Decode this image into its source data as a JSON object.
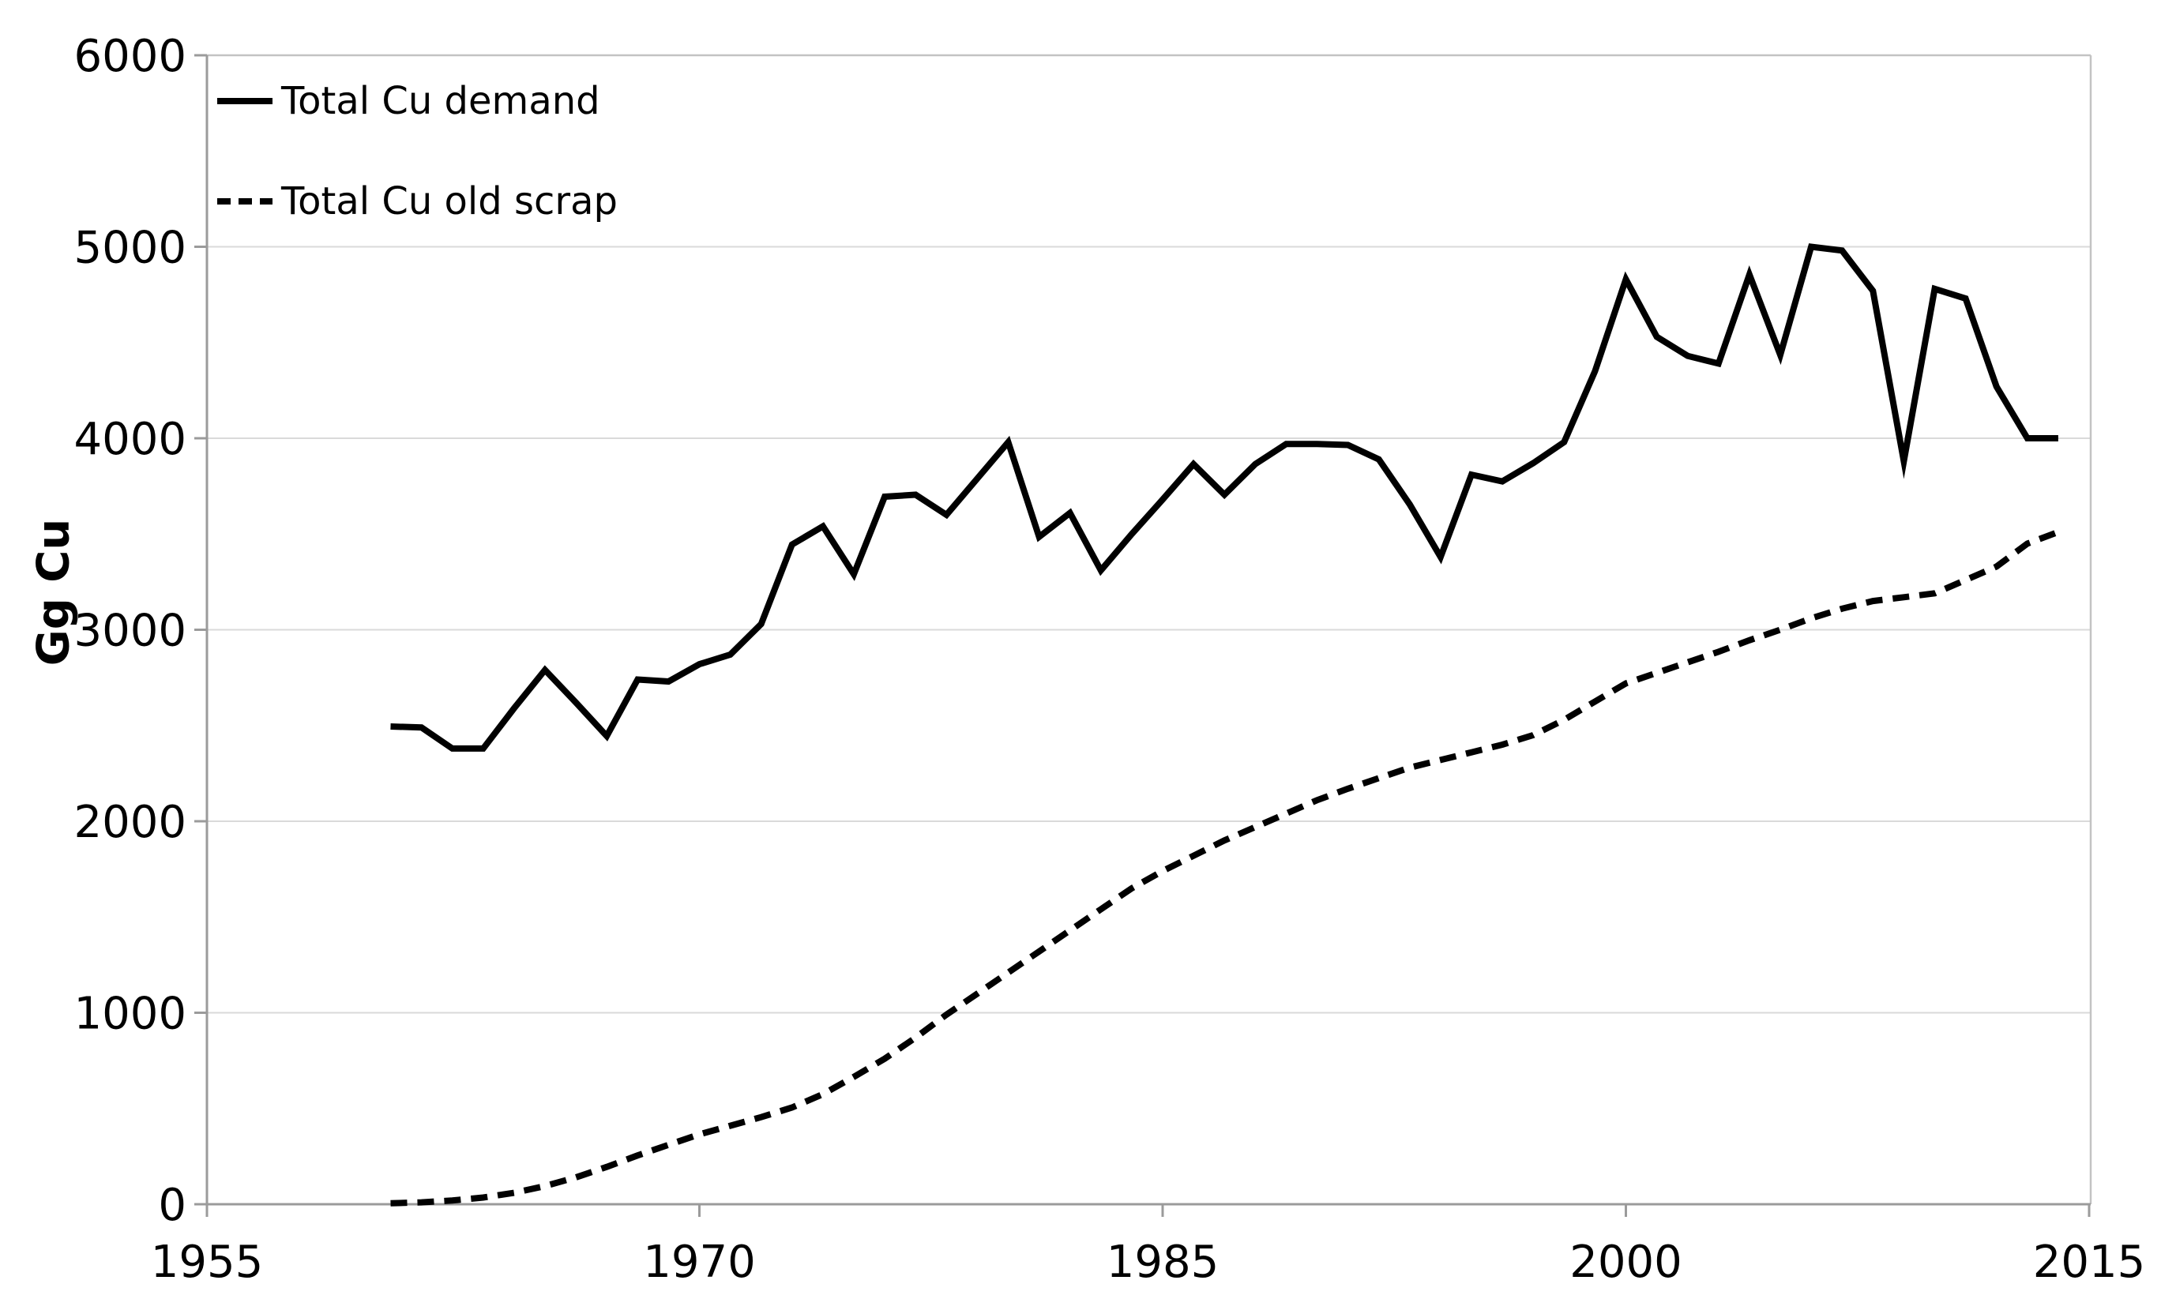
{
  "chart_data": {
    "type": "line",
    "title": "",
    "xlabel": "",
    "ylabel": "Gg Cu",
    "xlim": [
      1955,
      2015
    ],
    "ylim": [
      0,
      6000
    ],
    "x_ticks": [
      1955,
      1970,
      1985,
      2000,
      2015
    ],
    "y_ticks": [
      0,
      1000,
      2000,
      3000,
      4000,
      5000,
      6000
    ],
    "grid": "horizontal",
    "legend_position": "top-left-inside",
    "x": [
      1960,
      1961,
      1962,
      1963,
      1964,
      1965,
      1966,
      1967,
      1968,
      1969,
      1970,
      1971,
      1972,
      1973,
      1974,
      1975,
      1976,
      1977,
      1978,
      1979,
      1980,
      1981,
      1982,
      1983,
      1984,
      1985,
      1986,
      1987,
      1988,
      1989,
      1990,
      1991,
      1992,
      1993,
      1994,
      1995,
      1996,
      1997,
      1998,
      1999,
      2000,
      2001,
      2002,
      2003,
      2004,
      2005,
      2006,
      2007,
      2008,
      2009,
      2010,
      2011,
      2012,
      2013,
      2014
    ],
    "series": [
      {
        "name": "Total Cu demand",
        "style": "solid",
        "values": [
          2495,
          2490,
          2380,
          2380,
          2590,
          2790,
          2620,
          2445,
          2740,
          2730,
          2820,
          2870,
          3030,
          3445,
          3540,
          3290,
          3695,
          3705,
          3600,
          3790,
          3980,
          3485,
          3610,
          3310,
          3500,
          3680,
          3865,
          3705,
          3865,
          3970,
          3970,
          3965,
          3890,
          3655,
          3380,
          3810,
          3775,
          3870,
          3980,
          4350,
          4830,
          4530,
          4430,
          4390,
          4855,
          4435,
          5000,
          4980,
          4770,
          3880,
          4780,
          4730,
          4270,
          4000,
          4000
        ]
      },
      {
        "name": "Total Cu old scrap",
        "style": "dashed",
        "values": [
          5,
          10,
          20,
          35,
          60,
          95,
          140,
          195,
          255,
          310,
          365,
          410,
          455,
          505,
          575,
          665,
          760,
          870,
          990,
          1100,
          1210,
          1320,
          1430,
          1540,
          1650,
          1740,
          1820,
          1900,
          1970,
          2040,
          2110,
          2170,
          2225,
          2280,
          2320,
          2360,
          2400,
          2450,
          2530,
          2625,
          2720,
          2775,
          2830,
          2885,
          2945,
          3000,
          3060,
          3110,
          3150,
          3170,
          3190,
          3260,
          3330,
          3450,
          3510
        ]
      }
    ],
    "colors": {
      "series": "#000000",
      "text": "#000000",
      "gridline": "#dadada",
      "plot_border": "#c3c3c3",
      "axis": "#9b9b9b"
    }
  }
}
